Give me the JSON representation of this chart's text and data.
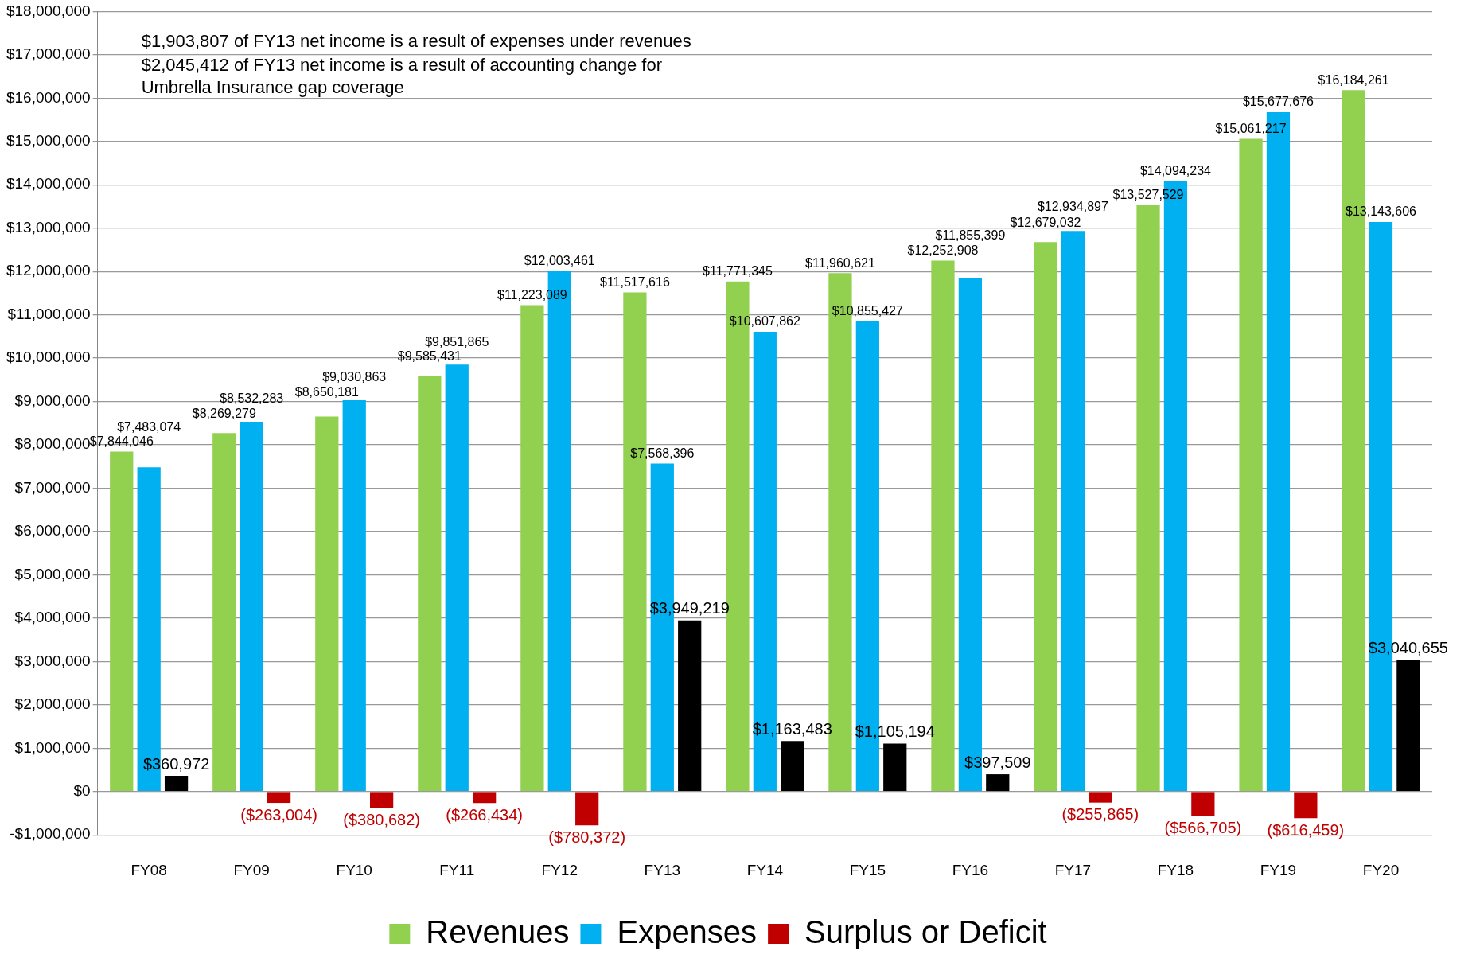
{
  "chart_data": {
    "type": "bar",
    "categories": [
      "FY08",
      "FY09",
      "FY10",
      "FY11",
      "FY12",
      "FY13",
      "FY14",
      "FY15",
      "FY16",
      "FY17",
      "FY18",
      "FY19",
      "FY20"
    ],
    "series": [
      {
        "name": "Revenues",
        "color": "#92d050",
        "values": [
          7844046,
          8269279,
          8650181,
          9585431,
          11223089,
          11517616,
          11771345,
          11960621,
          12252908,
          12679032,
          13527529,
          15061217,
          16184261
        ],
        "value_labels": [
          "$7,844,046",
          "$8,269,279",
          "$8,650,181",
          "$9,585,431",
          "$11,223,089",
          "$11,517,616",
          "$11,771,345",
          "$11,960,621",
          "$12,252,908",
          "$12,679,032",
          "$13,527,529",
          "$15,061,217",
          "$16,184,261"
        ]
      },
      {
        "name": "Expenses",
        "color": "#00b0f0",
        "values": [
          7483074,
          8532283,
          9030863,
          9851865,
          12003461,
          7568396,
          10607862,
          10855427,
          11855399,
          12934897,
          14094234,
          15677676,
          13143606
        ],
        "value_labels": [
          "$7,483,074",
          "$8,532,283",
          "$9,030,863",
          "$9,851,865",
          "$12,003,461",
          "$7,568,396",
          "$10,607,862",
          "$10,855,427",
          "$11,855,399",
          "$12,934,897",
          "$14,094,234",
          "$15,677,676",
          "$13,143,606"
        ]
      },
      {
        "name": "Surplus or Deficit",
        "color": "#c00000",
        "colors": [
          "#000000",
          "#c00000",
          "#c00000",
          "#c00000",
          "#c00000",
          "#000000",
          "#000000",
          "#000000",
          "#000000",
          "#c00000",
          "#c00000",
          "#c00000",
          "#000000"
        ],
        "values": [
          360972,
          -263004,
          -380682,
          -266434,
          -780372,
          3949219,
          1163483,
          1105194,
          397509,
          -255865,
          -566705,
          -616459,
          3040655
        ],
        "value_labels": [
          "$360,972",
          "($263,004)",
          "($380,682)",
          "($266,434)",
          "($780,372)",
          "$3,949,219",
          "$1,163,483",
          "$1,105,194",
          "$397,509",
          "($255,865)",
          "($566,705)",
          "($616,459)",
          "$3,040,655"
        ]
      }
    ],
    "ylim": [
      -1000000,
      18000000
    ],
    "yticks": [
      {
        "value": -1000000,
        "label": "-$1,000,000"
      },
      {
        "value": 0,
        "label": "$0"
      },
      {
        "value": 1000000,
        "label": "$1,000,000"
      },
      {
        "value": 2000000,
        "label": "$2,000,000"
      },
      {
        "value": 3000000,
        "label": "$3,000,000"
      },
      {
        "value": 4000000,
        "label": "$4,000,000"
      },
      {
        "value": 5000000,
        "label": "$5,000,000"
      },
      {
        "value": 6000000,
        "label": "$6,000,000"
      },
      {
        "value": 7000000,
        "label": "$7,000,000"
      },
      {
        "value": 8000000,
        "label": "$8,000,000"
      },
      {
        "value": 9000000,
        "label": "$9,000,000"
      },
      {
        "value": 10000000,
        "label": "$10,000,000"
      },
      {
        "value": 11000000,
        "label": "$11,000,000"
      },
      {
        "value": 12000000,
        "label": "$12,000,000"
      },
      {
        "value": 13000000,
        "label": "$13,000,000"
      },
      {
        "value": 14000000,
        "label": "$14,000,000"
      },
      {
        "value": 15000000,
        "label": "$15,000,000"
      },
      {
        "value": 16000000,
        "label": "$16,000,000"
      },
      {
        "value": 17000000,
        "label": "$17,000,000"
      },
      {
        "value": 18000000,
        "label": "$18,000,000"
      }
    ],
    "grid": "y",
    "legend": "bottom",
    "annotations": [
      "$1,903,807 of FY13 net income is a result of expenses under revenues",
      "$2,045,412 of FY13 net income is a result of accounting change for Umbrella Insurance gap coverage"
    ]
  }
}
